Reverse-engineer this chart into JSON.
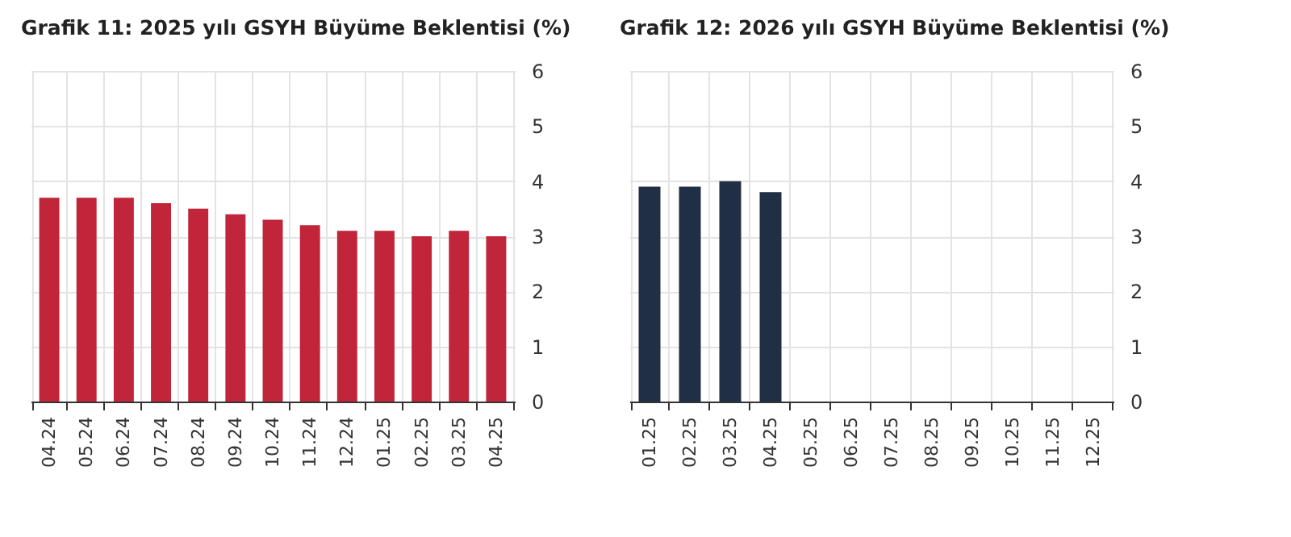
{
  "chart_data": [
    {
      "type": "bar",
      "title": "Grafik 11: 2025 yılı GSYH Büyüme Beklentisi (%)",
      "categories": [
        "04.24",
        "05.24",
        "06.24",
        "07.24",
        "08.24",
        "09.24",
        "10.24",
        "11.24",
        "12.24",
        "01.25",
        "02.25",
        "03.25",
        "04.25"
      ],
      "values": [
        3.7,
        3.7,
        3.7,
        3.6,
        3.5,
        3.4,
        3.3,
        3.2,
        3.1,
        3.1,
        3.0,
        3.1,
        3.0
      ],
      "color": "#c0253a",
      "ylim": [
        0,
        6
      ],
      "yticks": [
        0,
        1,
        2,
        3,
        4,
        5,
        6
      ],
      "grid": true
    },
    {
      "type": "bar",
      "title": "Grafik 12: 2026 yılı GSYH Büyüme Beklentisi (%)",
      "categories": [
        "01.25",
        "02.25",
        "03.25",
        "04.25",
        "05.25",
        "06.25",
        "07.25",
        "08.25",
        "09.25",
        "10.25",
        "11.25",
        "12.25"
      ],
      "values": [
        3.9,
        3.9,
        4.0,
        3.8,
        null,
        null,
        null,
        null,
        null,
        null,
        null,
        null
      ],
      "color": "#212f44",
      "ylim": [
        0,
        6
      ],
      "yticks": [
        0,
        1,
        2,
        3,
        4,
        5,
        6
      ],
      "grid": true
    }
  ]
}
